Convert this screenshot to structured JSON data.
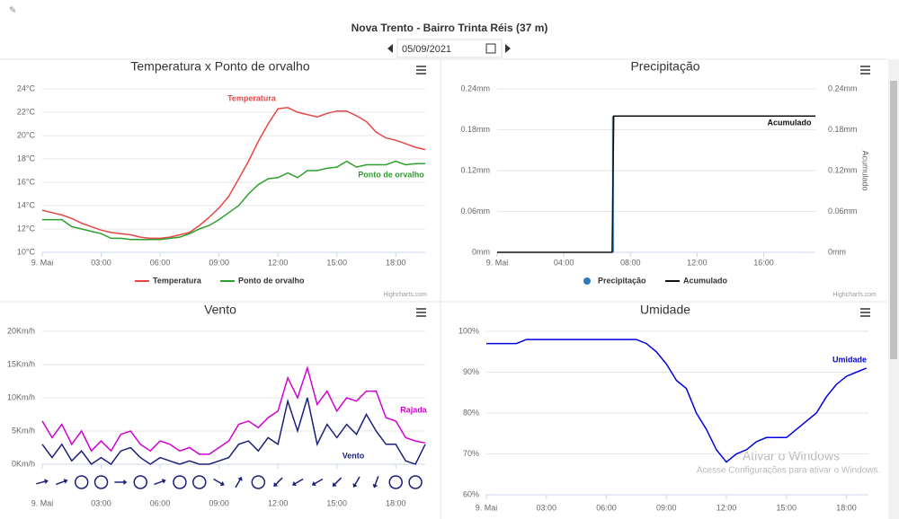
{
  "header": {
    "title": "Nova Trento - Bairro Trinta Réis (37 m)",
    "date": "05/09/2021"
  },
  "watermark": {
    "title": "Ativar o Windows",
    "subtitle": "Acesse Configurações para ativar o Windows."
  },
  "credit": "Highcharts.com",
  "chart_data": [
    {
      "type": "line",
      "title": "Temperatura x Ponto de orvalho",
      "legend": true,
      "x": [
        0,
        0.5,
        1,
        1.5,
        2,
        2.5,
        3,
        3.5,
        4,
        4.5,
        5,
        5.5,
        6,
        6.5,
        7,
        7.5,
        8,
        8.5,
        9,
        9.5,
        10,
        10.5,
        11,
        11.5,
        12,
        12.5,
        13,
        13.5,
        14,
        14.5,
        15,
        15.5,
        16,
        16.5,
        17,
        17.5,
        18,
        18.5,
        19,
        19.5
      ],
      "xlim": [
        0,
        19.5
      ],
      "xticks": [
        {
          "value": 0,
          "label": "9. Mai"
        },
        {
          "value": 3,
          "label": "03:00"
        },
        {
          "value": 6,
          "label": "06:00"
        },
        {
          "value": 9,
          "label": "09:00"
        },
        {
          "value": 12,
          "label": "12:00"
        },
        {
          "value": 15,
          "label": "15:00"
        },
        {
          "value": 18,
          "label": "18:00"
        }
      ],
      "ylim": [
        10,
        24
      ],
      "yticks": [
        {
          "value": 10,
          "label": "10°C"
        },
        {
          "value": 12,
          "label": "12°C"
        },
        {
          "value": 14,
          "label": "14°C"
        },
        {
          "value": 16,
          "label": "16°C"
        },
        {
          "value": 18,
          "label": "18°C"
        },
        {
          "value": 20,
          "label": "20°C"
        },
        {
          "value": 22,
          "label": "22°C"
        },
        {
          "value": 24,
          "label": "24°C"
        }
      ],
      "grid": true,
      "series": [
        {
          "name": "Temperatura",
          "color": "#e84646",
          "values": [
            13.6,
            13.4,
            13.2,
            12.9,
            12.5,
            12.2,
            11.9,
            11.7,
            11.6,
            11.5,
            11.3,
            11.2,
            11.2,
            11.3,
            11.5,
            11.7,
            12.3,
            13.0,
            13.8,
            14.8,
            16.3,
            17.8,
            19.5,
            21.0,
            22.3,
            22.4,
            22.0,
            21.8,
            21.6,
            21.9,
            22.1,
            22.1,
            21.7,
            21.2,
            20.3,
            19.8,
            19.6,
            19.3,
            19.0,
            18.8
          ]
        },
        {
          "name": "Ponto de orvalho",
          "color": "#2ca02c",
          "values": [
            12.8,
            12.8,
            12.8,
            12.2,
            12.0,
            11.8,
            11.6,
            11.2,
            11.2,
            11.1,
            11.1,
            11.1,
            11.1,
            11.2,
            11.3,
            11.6,
            12.0,
            12.3,
            12.8,
            13.4,
            14.0,
            15.0,
            15.8,
            16.3,
            16.4,
            16.8,
            16.4,
            17.0,
            17.0,
            17.2,
            17.3,
            17.8,
            17.3,
            17.5,
            17.5,
            17.5,
            17.8,
            17.5,
            17.6,
            17.6
          ]
        }
      ]
    },
    {
      "type": "line",
      "title": "Precipitação",
      "legend": true,
      "y2label": "Acumulado",
      "xlim": [
        0,
        19.1
      ],
      "xticks": [
        {
          "value": 0,
          "label": "9. Mai"
        },
        {
          "value": 4,
          "label": "04:00"
        },
        {
          "value": 8,
          "label": "08:00"
        },
        {
          "value": 12,
          "label": "12:00"
        },
        {
          "value": 16,
          "label": "16:00"
        }
      ],
      "ylim": [
        0,
        0.24
      ],
      "yticks": [
        {
          "value": 0,
          "label": "0mm"
        },
        {
          "value": 0.06,
          "label": "0.06mm"
        },
        {
          "value": 0.12,
          "label": "0.12mm"
        },
        {
          "value": 0.18,
          "label": "0.18mm"
        },
        {
          "value": 0.24,
          "label": "0.24mm"
        }
      ],
      "y2lim": [
        0,
        0.24
      ],
      "y2ticks": [
        {
          "value": 0,
          "label": "0mm"
        },
        {
          "value": 0.06,
          "label": "0.06mm"
        },
        {
          "value": 0.12,
          "label": "0.12mm"
        },
        {
          "value": 0.18,
          "label": "0.18mm"
        },
        {
          "value": 0.24,
          "label": "0.24mm"
        }
      ],
      "grid": true,
      "series": [
        {
          "name": "Precipitação",
          "color": "#2b7bc0",
          "kind": "column",
          "x": [
            6.95
          ],
          "values": [
            0.2
          ]
        },
        {
          "name": "Acumulado",
          "color": "#111111",
          "axis": "y2",
          "x": [
            0,
            6.9,
            7.0,
            19.1
          ],
          "values": [
            0,
            0,
            0.2,
            0.2
          ]
        }
      ]
    },
    {
      "type": "line",
      "title": "Vento",
      "legend": false,
      "x": [
        0,
        0.5,
        1,
        1.5,
        2,
        2.5,
        3,
        3.5,
        4,
        4.5,
        5,
        5.5,
        6,
        6.5,
        7,
        7.5,
        8,
        8.5,
        9,
        9.5,
        10,
        10.5,
        11,
        11.5,
        12,
        12.5,
        13,
        13.5,
        14,
        14.5,
        15,
        15.5,
        16,
        16.5,
        17,
        17.5,
        18,
        18.5,
        19,
        19.5
      ],
      "xlim": [
        0,
        19.5
      ],
      "xticks": [
        {
          "value": 0,
          "label": "9. Mai"
        },
        {
          "value": 3,
          "label": "03:00"
        },
        {
          "value": 6,
          "label": "06:00"
        },
        {
          "value": 9,
          "label": "09:00"
        },
        {
          "value": 12,
          "label": "12:00"
        },
        {
          "value": 15,
          "label": "15:00"
        },
        {
          "value": 18,
          "label": "18:00"
        }
      ],
      "ylim": [
        0,
        20
      ],
      "yticks": [
        {
          "value": 0,
          "label": "0Km/h"
        },
        {
          "value": 5,
          "label": "5Km/h"
        },
        {
          "value": 10,
          "label": "10Km/h"
        },
        {
          "value": 15,
          "label": "15Km/h"
        },
        {
          "value": 20,
          "label": "20Km/h"
        }
      ],
      "grid": true,
      "series": [
        {
          "name": "Rajada",
          "color": "#d000d0",
          "values": [
            6.5,
            4,
            6,
            3,
            5,
            2,
            3.5,
            2,
            4.5,
            5,
            3,
            2,
            3.5,
            3,
            2,
            2.5,
            1.5,
            1.5,
            2.5,
            3.5,
            6,
            6.5,
            5.5,
            7,
            8,
            13,
            10,
            14.5,
            9,
            11,
            8,
            10,
            9.5,
            11,
            11,
            7,
            6.5,
            4,
            3.5,
            3.2
          ]
        },
        {
          "name": "Vento",
          "color": "#1a1f7a",
          "values": [
            3,
            1,
            3,
            0.5,
            2,
            0,
            1,
            0,
            2,
            2.5,
            1,
            0,
            1,
            0.5,
            0,
            0.5,
            0,
            0,
            0.5,
            1,
            3,
            3.5,
            2,
            4,
            3,
            9.5,
            5,
            10,
            3,
            6,
            4,
            6,
            4.5,
            7.5,
            5,
            3,
            3,
            0.5,
            0,
            3
          ]
        }
      ],
      "direction": {
        "x": [
          0,
          1,
          2,
          3,
          4,
          5,
          6,
          7,
          8,
          9,
          10,
          11,
          12,
          13,
          14,
          15,
          16,
          17,
          18,
          19
        ],
        "values": [
          75,
          70,
          null,
          null,
          90,
          null,
          70,
          null,
          null,
          120,
          30,
          null,
          225,
          240,
          240,
          225,
          210,
          200,
          null,
          null
        ]
      }
    },
    {
      "type": "line",
      "title": "Umidade",
      "legend": false,
      "x": [
        0,
        0.5,
        1,
        1.5,
        2,
        2.5,
        3,
        3.5,
        4,
        4.5,
        5,
        5.5,
        6,
        6.5,
        7,
        7.5,
        8,
        8.5,
        9,
        9.5,
        10,
        10.5,
        11,
        11.5,
        12,
        12.5,
        13,
        13.5,
        14,
        14.5,
        15,
        15.5,
        16,
        16.5,
        17,
        17.5,
        18,
        18.5,
        19
      ],
      "xlim": [
        0,
        19.1
      ],
      "xticks": [
        {
          "value": 0,
          "label": "9. Mai"
        },
        {
          "value": 3,
          "label": "03:00"
        },
        {
          "value": 6,
          "label": "06:00"
        },
        {
          "value": 9,
          "label": "09:00"
        },
        {
          "value": 12,
          "label": "12:00"
        },
        {
          "value": 15,
          "label": "15:00"
        },
        {
          "value": 18,
          "label": "18:00"
        }
      ],
      "ylim": [
        60,
        100
      ],
      "yticks": [
        {
          "value": 60,
          "label": "60%"
        },
        {
          "value": 70,
          "label": "70%"
        },
        {
          "value": 80,
          "label": "80%"
        },
        {
          "value": 90,
          "label": "90%"
        },
        {
          "value": 100,
          "label": "100%"
        }
      ],
      "grid": true,
      "series": [
        {
          "name": "Umidade",
          "color": "#0000e0",
          "values": [
            97,
            97,
            97,
            97,
            98,
            98,
            98,
            98,
            98,
            98,
            98,
            98,
            98,
            98,
            98,
            98,
            97,
            95,
            92,
            88,
            86,
            80,
            76,
            71,
            68,
            70,
            71,
            73,
            74,
            74,
            74,
            76,
            78,
            80,
            84,
            87,
            89,
            90,
            91
          ]
        }
      ]
    }
  ]
}
